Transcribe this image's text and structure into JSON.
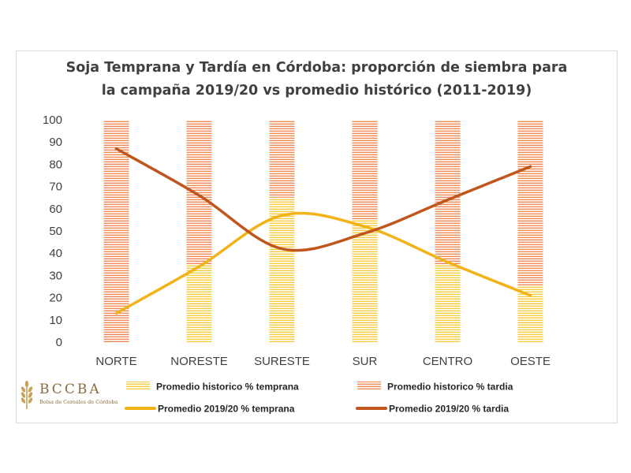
{
  "chart_data": {
    "type": "bar",
    "title": "Soja Temprana y Tardía en Córdoba: proporción de siembra para la campaña 2019/20 vs promedio histórico (2011-2019)",
    "title_lines": [
      "Soja Temprana y Tardía en Córdoba: proporción de siembra para",
      "la campaña 2019/20 vs promedio histórico (2011-2019)"
    ],
    "categories": [
      "NORTE",
      "NORESTE",
      "SURESTE",
      "SUR",
      "CENTRO",
      "OESTE"
    ],
    "ylim": [
      0,
      100
    ],
    "yticks": [
      0,
      10,
      20,
      30,
      40,
      50,
      60,
      70,
      80,
      90,
      100
    ],
    "stacked": true,
    "series": [
      {
        "name": "Promedio historico % temprana",
        "kind": "bar",
        "color": "#f5cd3f",
        "values": [
          0,
          35,
          65,
          55,
          35,
          25
        ]
      },
      {
        "name": "Promedio historico % tardia",
        "kind": "bar",
        "color": "#ed8a55",
        "values": [
          100,
          65,
          35,
          45,
          65,
          75
        ]
      },
      {
        "name": "Promedio 2019/20 % temprana",
        "kind": "line",
        "color": "#f2b318",
        "values": [
          13,
          34,
          57,
          52,
          36,
          21
        ]
      },
      {
        "name": "Promedio 2019/20 % tardia",
        "kind": "line",
        "color": "#c0561c",
        "values": [
          87,
          66,
          42,
          49,
          64,
          79
        ]
      }
    ],
    "legend_position": "bottom",
    "grid": false
  },
  "logo": {
    "name": "BCCBA",
    "subtitle": "Bolsa de Cereales de Córdoba"
  }
}
